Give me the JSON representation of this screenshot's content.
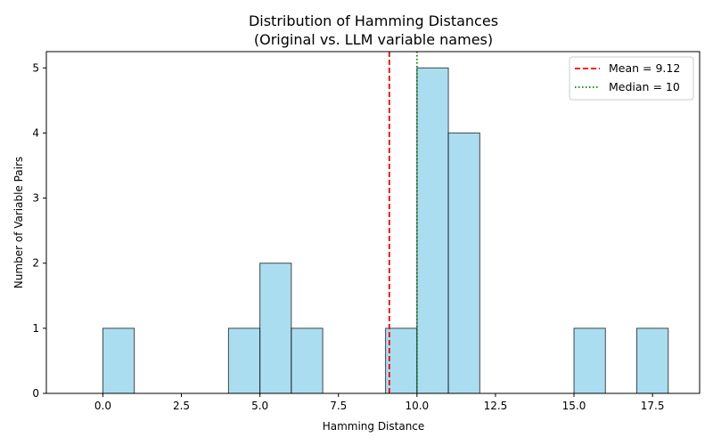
{
  "chart_data": {
    "type": "bar",
    "title": "Distribution of Hamming Distances",
    "subtitle": "(Original vs. LLM variable names)",
    "xlabel": "Hamming Distance",
    "ylabel": "Number of Variable Pairs",
    "xlim": [
      -1.8,
      19.0
    ],
    "ylim": [
      0,
      5.25
    ],
    "xticks": [
      0.0,
      2.5,
      5.0,
      7.5,
      10.0,
      12.5,
      15.0,
      17.5
    ],
    "xtick_labels": [
      "0.0",
      "2.5",
      "5.0",
      "7.5",
      "10.0",
      "12.5",
      "15.0",
      "17.5"
    ],
    "yticks": [
      0,
      1,
      2,
      3,
      4,
      5
    ],
    "ytick_labels": [
      "0",
      "1",
      "2",
      "3",
      "4",
      "5"
    ],
    "bins": [
      {
        "start": 0,
        "end": 1,
        "count": 1
      },
      {
        "start": 4,
        "end": 5,
        "count": 1
      },
      {
        "start": 5,
        "end": 6,
        "count": 2
      },
      {
        "start": 6,
        "end": 7,
        "count": 1
      },
      {
        "start": 9,
        "end": 10,
        "count": 1
      },
      {
        "start": 10,
        "end": 11,
        "count": 5
      },
      {
        "start": 11,
        "end": 12,
        "count": 4
      },
      {
        "start": 15,
        "end": 16,
        "count": 1
      },
      {
        "start": 17,
        "end": 18,
        "count": 1
      }
    ],
    "bar_color": "#87ceeb",
    "bar_edge_color": "#000000",
    "reference_lines": [
      {
        "label": "Mean = 9.12",
        "value": 9.12,
        "color": "#ff0000",
        "style": "dashed"
      },
      {
        "label": "Median = 10",
        "value": 10,
        "color": "#008000",
        "style": "dotted"
      }
    ],
    "legend_position": "top-right",
    "grid": false
  }
}
